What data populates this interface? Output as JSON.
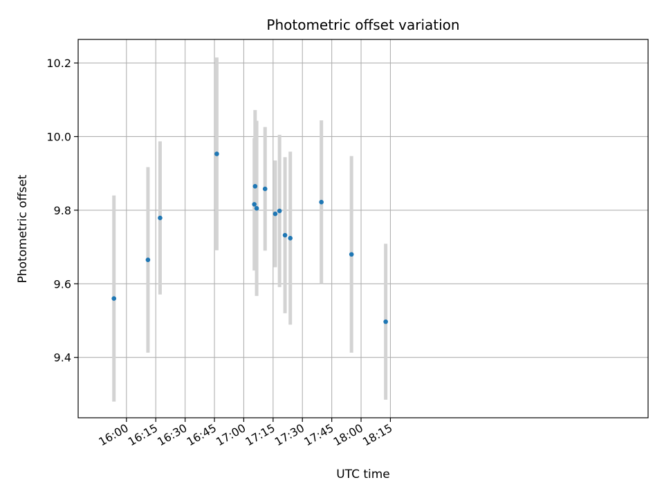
{
  "chart_data": {
    "type": "scatter",
    "title": "Photometric offset variation",
    "xlabel": "UTC time",
    "ylabel": "Photometric offset",
    "x_unit": "time of day (minutes after midnight)",
    "xlim": [
      935.3,
      1226.8
    ],
    "ylim": [
      9.236,
      10.264
    ],
    "xticks": [
      {
        "value": 960,
        "label": "16:00"
      },
      {
        "value": 975,
        "label": "16:15"
      },
      {
        "value": 990,
        "label": "16:30"
      },
      {
        "value": 1005,
        "label": "16:45"
      },
      {
        "value": 1020,
        "label": "17:00"
      },
      {
        "value": 1035,
        "label": "17:15"
      },
      {
        "value": 1050,
        "label": "17:30"
      },
      {
        "value": 1065,
        "label": "17:45"
      },
      {
        "value": 1080,
        "label": "18:00"
      },
      {
        "value": 1095,
        "label": "18:15"
      }
    ],
    "yticks": [
      {
        "value": 9.4,
        "label": "9.4"
      },
      {
        "value": 9.6,
        "label": "9.6"
      },
      {
        "value": 9.8,
        "label": "9.8"
      },
      {
        "value": 10.0,
        "label": "10.0"
      },
      {
        "value": 10.2,
        "label": "10.2"
      }
    ],
    "grid": true,
    "colors": {
      "points": "#1f77b4",
      "errorbars": "#d3d3d3",
      "grid": "#b0b0b0"
    },
    "points": [
      {
        "x": 953.6,
        "y": 9.56,
        "err": 0.28
      },
      {
        "x": 971.0,
        "y": 9.665,
        "err": 0.252
      },
      {
        "x": 977.2,
        "y": 9.779,
        "err": 0.208
      },
      {
        "x": 1006.2,
        "y": 9.953,
        "err": 0.262
      },
      {
        "x": 1025.4,
        "y": 9.816,
        "err": 0.18
      },
      {
        "x": 1025.8,
        "y": 9.865,
        "err": 0.207
      },
      {
        "x": 1026.6,
        "y": 9.805,
        "err": 0.238
      },
      {
        "x": 1030.9,
        "y": 9.858,
        "err": 0.168
      },
      {
        "x": 1036.1,
        "y": 9.79,
        "err": 0.145
      },
      {
        "x": 1038.3,
        "y": 9.798,
        "err": 0.207
      },
      {
        "x": 1041.1,
        "y": 9.732,
        "err": 0.212
      },
      {
        "x": 1043.8,
        "y": 9.724,
        "err": 0.235
      },
      {
        "x": 1059.7,
        "y": 9.822,
        "err": 0.222
      },
      {
        "x": 1075.1,
        "y": 9.68,
        "err": 0.267
      },
      {
        "x": 1092.6,
        "y": 9.497,
        "err": 0.212
      }
    ]
  }
}
